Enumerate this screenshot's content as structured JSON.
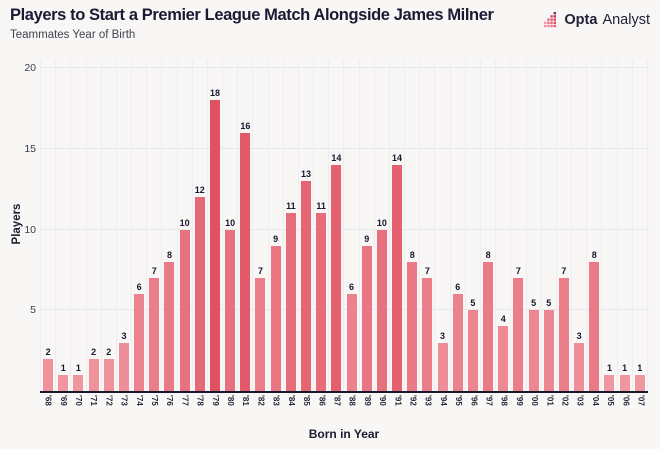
{
  "header": {
    "title": "Players to Start a Premier League Match Alongside James Milner",
    "subtitle": "Teammates Year of Birth",
    "brand": {
      "name_bold": "Opta",
      "name_regular": "Analyst",
      "icon": "opta-dots-chart-icon"
    }
  },
  "chart_data": {
    "type": "bar",
    "title": "Players to Start a Premier League Match Alongside James Milner",
    "subtitle": "Teammates Year of Birth",
    "xlabel": "Born in Year",
    "ylabel": "Players",
    "categories": [
      "'68",
      "'69",
      "'70",
      "'71",
      "'72",
      "'73",
      "'74",
      "'75",
      "'76",
      "'77",
      "'78",
      "'79",
      "'80",
      "'81",
      "'82",
      "'83",
      "'84",
      "'85",
      "'86",
      "'87",
      "'88",
      "'89",
      "'90",
      "'91",
      "'92",
      "'93",
      "'94",
      "'95",
      "'96",
      "'97",
      "'98",
      "'99",
      "'00",
      "'01",
      "'02",
      "'03",
      "'04",
      "'05",
      "'06",
      "'07"
    ],
    "values": [
      2,
      1,
      1,
      2,
      2,
      3,
      6,
      7,
      8,
      10,
      12,
      18,
      10,
      16,
      7,
      9,
      11,
      13,
      11,
      14,
      6,
      9,
      10,
      14,
      8,
      7,
      3,
      6,
      5,
      8,
      4,
      7,
      5,
      5,
      7,
      3,
      8,
      1,
      1,
      1
    ],
    "yticks": [
      5,
      10,
      15,
      20
    ],
    "ylim": [
      0,
      20.5
    ],
    "grid": "light horizontal lines at yticks and vertical lines per category",
    "legend": "none",
    "bar_labels": "value shown above each bar",
    "color_scale": {
      "min_value": 1,
      "max_value": 18,
      "min_color": "#f0969f",
      "max_color": "#e15162"
    },
    "axis_line_color": "#18182c",
    "background_color": "#f8f7f6"
  }
}
